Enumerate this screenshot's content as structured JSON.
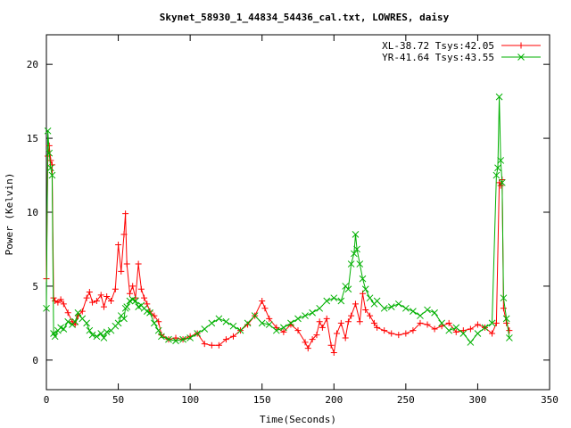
{
  "chart_data": {
    "type": "line",
    "title": "Skynet_58930_1_44834_54436_cal.txt, LOWRES, daisy",
    "xlabel": "Time(Seconds)",
    "ylabel": "Power (Kelvin)",
    "xlim": [
      0,
      350
    ],
    "ylim": [
      -2,
      22
    ],
    "xticks": [
      "0",
      "50",
      "100",
      "150",
      "200",
      "250",
      "300",
      "350"
    ],
    "yticks": [
      "0",
      "5",
      "10",
      "15",
      "20"
    ],
    "grid": false,
    "legend": "top-right",
    "series": [
      {
        "name": "XL-38.72 Tsys:42.05",
        "color": "#ff0000",
        "marker": "+",
        "x": [
          0,
          1,
          2,
          3,
          4,
          5,
          6,
          8,
          10,
          12,
          15,
          18,
          20,
          22,
          25,
          28,
          30,
          32,
          35,
          38,
          40,
          42,
          45,
          48,
          50,
          52,
          54,
          55,
          56,
          58,
          60,
          62,
          64,
          66,
          68,
          70,
          72,
          75,
          78,
          80,
          85,
          90,
          95,
          100,
          105,
          110,
          115,
          120,
          125,
          130,
          135,
          140,
          145,
          150,
          152,
          155,
          160,
          165,
          170,
          175,
          180,
          182,
          185,
          188,
          190,
          192,
          195,
          198,
          200,
          202,
          205,
          208,
          210,
          212,
          215,
          218,
          220,
          222,
          225,
          228,
          230,
          235,
          240,
          245,
          250,
          255,
          260,
          265,
          270,
          275,
          280,
          285,
          290,
          295,
          300,
          305,
          310,
          313,
          315,
          316,
          317,
          318,
          320,
          322
        ],
        "y": [
          5.5,
          13.8,
          14.5,
          13.5,
          13.2,
          4.2,
          4.0,
          3.9,
          4.1,
          3.8,
          3.2,
          2.6,
          2.4,
          3.0,
          3.3,
          4.2,
          4.6,
          3.9,
          4.0,
          4.4,
          3.6,
          4.3,
          4.0,
          4.8,
          7.8,
          6.0,
          8.5,
          9.9,
          6.5,
          4.5,
          5.0,
          4.2,
          6.5,
          4.8,
          4.2,
          3.8,
          3.3,
          3.0,
          2.6,
          1.7,
          1.4,
          1.5,
          1.4,
          1.6,
          1.8,
          1.1,
          1.0,
          1.0,
          1.4,
          1.6,
          2.0,
          2.4,
          3.0,
          4.0,
          3.5,
          2.8,
          2.2,
          1.9,
          2.4,
          2.0,
          1.2,
          0.8,
          1.4,
          1.7,
          2.6,
          2.2,
          2.8,
          1.0,
          0.5,
          1.8,
          2.5,
          1.5,
          2.6,
          3.0,
          3.8,
          2.6,
          4.5,
          3.4,
          3.0,
          2.5,
          2.2,
          2.0,
          1.8,
          1.7,
          1.8,
          2.0,
          2.5,
          2.4,
          2.1,
          2.3,
          2.5,
          1.9,
          2.0,
          2.1,
          2.4,
          2.2,
          1.8,
          2.5,
          12.0,
          11.8,
          12.2,
          3.5,
          2.5,
          2.0
        ]
      },
      {
        "name": "YR-41.64 Tsys:43.55",
        "color": "#00b000",
        "marker": "x",
        "x": [
          0,
          1,
          2,
          3,
          4,
          5,
          6,
          8,
          10,
          12,
          15,
          18,
          20,
          22,
          25,
          28,
          30,
          32,
          35,
          38,
          40,
          42,
          45,
          48,
          50,
          52,
          54,
          55,
          56,
          58,
          60,
          62,
          64,
          66,
          68,
          70,
          72,
          75,
          78,
          80,
          85,
          90,
          95,
          100,
          105,
          110,
          115,
          120,
          125,
          130,
          135,
          140,
          145,
          150,
          155,
          160,
          165,
          170,
          175,
          180,
          185,
          190,
          195,
          200,
          205,
          208,
          210,
          212,
          214,
          215,
          216,
          218,
          220,
          222,
          225,
          228,
          230,
          235,
          240,
          245,
          250,
          255,
          260,
          265,
          270,
          275,
          280,
          285,
          290,
          295,
          300,
          305,
          310,
          313,
          314,
          315,
          316,
          317,
          318,
          320,
          322
        ],
        "y": [
          3.5,
          15.5,
          14.0,
          13.0,
          12.5,
          1.8,
          1.6,
          2.0,
          2.2,
          2.1,
          2.6,
          2.4,
          2.6,
          3.2,
          2.8,
          2.5,
          2.0,
          1.7,
          1.6,
          1.8,
          1.5,
          1.9,
          2.0,
          2.3,
          2.5,
          3.0,
          2.8,
          3.5,
          3.6,
          4.0,
          4.1,
          4.0,
          3.6,
          3.7,
          3.5,
          3.3,
          3.2,
          2.5,
          2.0,
          1.6,
          1.4,
          1.3,
          1.4,
          1.5,
          1.8,
          2.1,
          2.5,
          2.8,
          2.6,
          2.3,
          2.0,
          2.5,
          3.0,
          2.5,
          2.4,
          2.0,
          2.2,
          2.5,
          2.8,
          3.0,
          3.2,
          3.5,
          4.0,
          4.2,
          4.0,
          5.0,
          4.8,
          6.5,
          7.2,
          8.5,
          7.5,
          6.5,
          5.5,
          4.8,
          4.2,
          3.8,
          4.0,
          3.5,
          3.6,
          3.8,
          3.5,
          3.3,
          3.0,
          3.4,
          3.2,
          2.5,
          2.0,
          2.2,
          1.8,
          1.2,
          1.8,
          2.2,
          2.5,
          12.5,
          13.0,
          17.8,
          13.5,
          12.0,
          4.2,
          2.8,
          1.5
        ]
      }
    ]
  }
}
